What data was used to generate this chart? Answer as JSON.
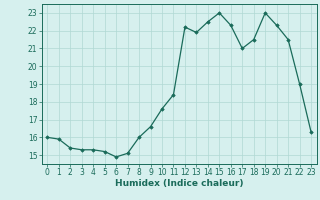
{
  "x": [
    0,
    1,
    2,
    3,
    4,
    5,
    6,
    7,
    8,
    9,
    10,
    11,
    12,
    13,
    14,
    15,
    16,
    17,
    18,
    19,
    20,
    21,
    22,
    23
  ],
  "y": [
    16.0,
    15.9,
    15.4,
    15.3,
    15.3,
    15.2,
    14.9,
    15.1,
    16.0,
    16.6,
    17.6,
    18.4,
    22.2,
    21.9,
    22.5,
    23.0,
    22.3,
    21.0,
    21.5,
    23.0,
    22.3,
    21.5,
    19.0,
    16.3
  ],
  "line_color": "#1a6b5a",
  "marker": "D",
  "markersize": 1.8,
  "linewidth": 0.9,
  "bg_color": "#d6f0ee",
  "grid_color": "#b0d8d4",
  "xlabel": "Humidex (Indice chaleur)",
  "ylim": [
    14.5,
    23.5
  ],
  "xlim": [
    -0.5,
    23.5
  ],
  "yticks": [
    15,
    16,
    17,
    18,
    19,
    20,
    21,
    22,
    23
  ],
  "xticks": [
    0,
    1,
    2,
    3,
    4,
    5,
    6,
    7,
    8,
    9,
    10,
    11,
    12,
    13,
    14,
    15,
    16,
    17,
    18,
    19,
    20,
    21,
    22,
    23
  ],
  "tick_color": "#1a6b5a",
  "tick_fontsize": 5.5,
  "xlabel_fontsize": 6.5
}
